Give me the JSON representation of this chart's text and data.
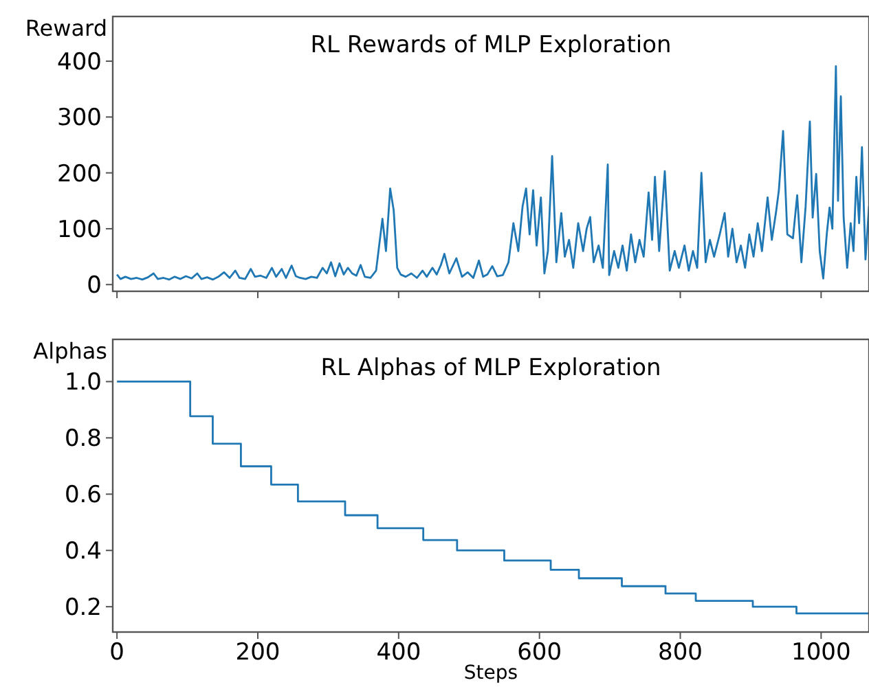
{
  "chart_data": [
    {
      "type": "line",
      "title": "RL Rewards of MLP Exploration",
      "ylabel": "Reward",
      "xlim": [
        -6,
        1068
      ],
      "xticks": [
        0,
        200,
        400,
        600,
        800,
        1000
      ],
      "ylim": [
        -12,
        480
      ],
      "yticks": [
        0,
        100,
        200,
        300,
        400
      ],
      "tick_labels": "y",
      "grid": false,
      "series": [
        {
          "color": "#1f77b4",
          "x": [
            0,
            5,
            12,
            20,
            28,
            36,
            44,
            52,
            58,
            66,
            74,
            82,
            90,
            98,
            106,
            114,
            120,
            128,
            136,
            144,
            152,
            160,
            168,
            174,
            182,
            190,
            196,
            204,
            212,
            220,
            226,
            234,
            240,
            248,
            254,
            260,
            268,
            276,
            284,
            292,
            298,
            304,
            310,
            316,
            322,
            328,
            334,
            340,
            346,
            352,
            360,
            368,
            377,
            382,
            388,
            393,
            398,
            403,
            410,
            418,
            426,
            434,
            440,
            448,
            454,
            460,
            465,
            472,
            482,
            490,
            498,
            506,
            514,
            520,
            526,
            533,
            540,
            548,
            556,
            563,
            570,
            576,
            581,
            586,
            591,
            596,
            602,
            607,
            612,
            618,
            624,
            631,
            636,
            642,
            648,
            655,
            662,
            667,
            672,
            677,
            684,
            690,
            697,
            699,
            706,
            712,
            718,
            724,
            730,
            736,
            742,
            748,
            755,
            760,
            764,
            770,
            778,
            785,
            792,
            798,
            806,
            812,
            818,
            824,
            830,
            836,
            842,
            848,
            856,
            863,
            868,
            874,
            880,
            886,
            892,
            898,
            904,
            910,
            916,
            924,
            930,
            936,
            940,
            946,
            952,
            960,
            966,
            972,
            978,
            984,
            988,
            993,
            998,
            1003,
            1008,
            1012,
            1016,
            1021,
            1024,
            1028,
            1032,
            1037,
            1042,
            1046,
            1050,
            1054,
            1058,
            1063,
            1068
          ],
          "values": [
            18,
            10,
            14,
            10,
            12,
            9,
            13,
            20,
            10,
            12,
            9,
            14,
            10,
            15,
            11,
            20,
            10,
            13,
            9,
            14,
            22,
            12,
            25,
            12,
            10,
            28,
            14,
            16,
            12,
            30,
            14,
            28,
            12,
            34,
            15,
            12,
            10,
            14,
            12,
            30,
            20,
            40,
            15,
            38,
            18,
            30,
            20,
            16,
            35,
            14,
            12,
            25,
            118,
            60,
            172,
            133,
            30,
            18,
            14,
            20,
            12,
            25,
            14,
            30,
            18,
            35,
            55,
            20,
            47,
            14,
            22,
            12,
            43,
            14,
            18,
            33,
            15,
            17,
            40,
            110,
            60,
            140,
            172,
            90,
            169,
            70,
            156,
            20,
            60,
            230,
            40,
            128,
            50,
            80,
            30,
            110,
            60,
            100,
            121,
            40,
            70,
            30,
            215,
            17,
            60,
            30,
            70,
            25,
            90,
            40,
            80,
            50,
            165,
            80,
            193,
            60,
            203,
            25,
            60,
            30,
            70,
            25,
            60,
            30,
            200,
            40,
            80,
            50,
            90,
            128,
            50,
            100,
            40,
            70,
            30,
            90,
            50,
            110,
            60,
            156,
            80,
            130,
            169,
            275,
            90,
            83,
            160,
            40,
            140,
            292,
            120,
            198,
            60,
            11,
            90,
            138,
            100,
            391,
            150,
            337,
            120,
            30,
            110,
            60,
            193,
            110,
            246,
            45,
            140
          ]
        }
      ]
    },
    {
      "type": "step",
      "title": "RL Alphas of MLP Exploration",
      "ylabel": "Alphas",
      "xlabel": "Steps",
      "xlim": [
        -6,
        1068
      ],
      "xticks": [
        0,
        200,
        400,
        600,
        800,
        1000
      ],
      "ylim": [
        0.11,
        1.15
      ],
      "yticks": [
        {
          "value": 0.2,
          "label": "0.2"
        },
        {
          "value": 0.4,
          "label": "0.4"
        },
        {
          "value": 0.6,
          "label": "0.6"
        },
        {
          "value": 0.8,
          "label": "0.8"
        },
        {
          "value": 1.0,
          "label": "1.0"
        }
      ],
      "grid": false,
      "series": [
        {
          "color": "#1f77b4",
          "x": [
            0,
            104,
            136,
            176,
            219,
            257,
            324,
            370,
            435,
            483,
            550,
            616,
            656,
            717,
            779,
            822,
            903,
            965,
            1068
          ],
          "values": [
            1.0,
            0.877,
            0.779,
            0.699,
            0.634,
            0.574,
            0.525,
            0.479,
            0.437,
            0.4,
            0.364,
            0.331,
            0.301,
            0.273,
            0.247,
            0.221,
            0.2,
            0.176,
            0.176
          ]
        }
      ]
    }
  ]
}
